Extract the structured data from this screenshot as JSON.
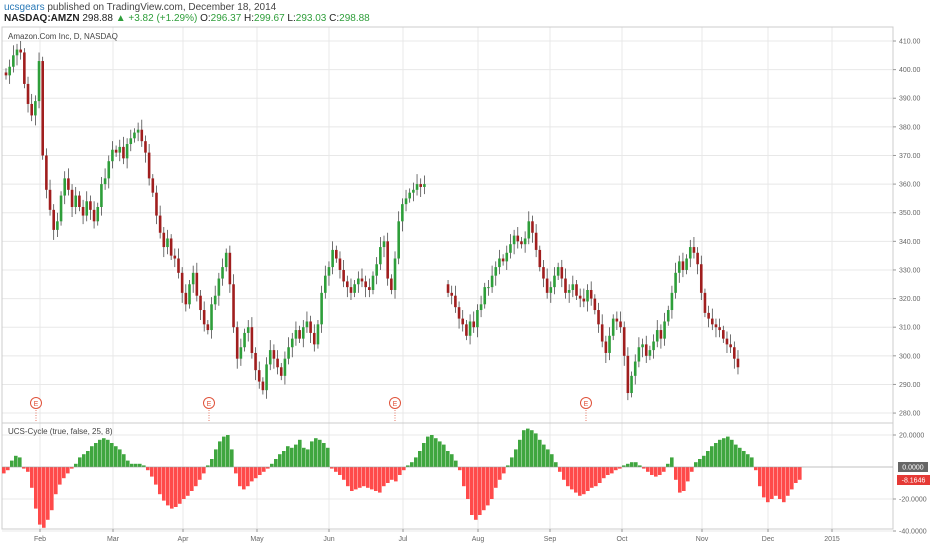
{
  "header": {
    "user": "ucsgears",
    "published": "published on TradingView.com, December 18, 2014",
    "symbol": "NASDAQ:AMZN",
    "last": "298.88",
    "change": "▲ +3.82 (+1.29%)",
    "open_label": "O:",
    "open": "296.37",
    "high_label": "H:",
    "high": "299.67",
    "low_label": "L:",
    "low": "293.03",
    "close_label": "C:",
    "close": "298.88"
  },
  "colors": {
    "up": "#2e9e3a",
    "down": "#a01e1e",
    "hist_up": "#3fa63f",
    "hist_down": "#ff4a4a",
    "grid": "#e8e8e8",
    "earnings": "#e0533b"
  },
  "chart_data": [
    {
      "type": "candlestick",
      "title": "Amazon.Com Inc, D, NASDAQ",
      "x_labels": [
        "Feb",
        "Mar",
        "Apr",
        "May",
        "Jun",
        "Jul",
        "Aug",
        "Sep",
        "Oct",
        "Nov",
        "Dec",
        "2015"
      ],
      "y_ticks": [
        280,
        290,
        300,
        310,
        320,
        330,
        340,
        350,
        360,
        370,
        380,
        390,
        400,
        410
      ],
      "y_tick_labels": [
        "280.00",
        "290.00",
        "300.00",
        "310.00",
        "320.00",
        "330.00",
        "340.00",
        "350.00",
        "360.00",
        "370.00",
        "380.00",
        "390.00",
        "400.00",
        "410.00"
      ],
      "ylim": [
        276,
        413
      ],
      "earnings_marker": "E",
      "earnings_x": [
        30,
        203,
        389,
        580
      ],
      "closes": [
        398,
        401,
        405,
        407,
        406,
        395,
        388,
        384,
        389,
        403,
        370,
        358,
        351,
        344,
        347,
        356,
        362,
        358,
        352,
        356,
        352,
        349,
        354,
        351,
        347,
        352,
        360,
        362,
        368,
        372,
        371,
        373,
        369,
        374,
        376,
        378,
        379,
        375,
        371,
        362,
        357,
        349,
        343,
        338,
        341,
        335,
        334,
        329,
        322,
        318,
        325,
        329,
        321,
        316,
        311,
        309,
        318,
        321,
        327,
        331,
        336,
        325,
        310,
        299,
        303,
        308,
        310,
        301,
        295,
        291,
        288,
        297,
        302,
        299,
        296,
        293,
        299,
        303,
        306,
        309,
        306,
        310,
        312,
        308,
        304,
        311,
        322,
        328,
        331,
        337,
        334,
        330,
        326,
        324,
        322,
        325,
        327,
        326,
        324,
        323,
        328,
        332,
        338,
        340,
        327,
        323,
        334,
        347,
        353,
        355,
        357,
        358,
        360,
        359,
        360,
        322,
        321,
        317,
        313,
        311,
        307,
        312,
        310,
        316,
        318,
        324,
        324,
        328,
        331,
        334,
        333,
        336,
        339,
        342,
        340,
        339,
        341,
        347,
        343,
        337,
        331,
        327,
        322,
        324,
        328,
        331,
        327,
        322,
        323,
        325,
        321,
        320,
        319,
        323,
        320,
        316,
        311,
        305,
        301,
        307,
        313,
        312,
        310,
        300,
        287,
        293,
        298,
        303,
        304,
        300,
        302,
        305,
        309,
        306,
        312,
        316,
        322,
        329,
        333,
        330,
        334,
        338,
        336,
        332,
        322,
        315,
        313,
        311,
        310,
        309,
        306,
        304,
        303,
        299,
        296
      ],
      "x_start": 6,
      "x_step": 3.67
    },
    {
      "type": "bar",
      "title": "UCS-Cycle (true, false, 25, 8)",
      "y_ticks": [
        20,
        0,
        -20,
        -40
      ],
      "y_tick_labels": [
        "20.0000",
        "0.0000",
        "-20.0000",
        "-40.0000"
      ],
      "ylim": [
        -40,
        25
      ],
      "last_value_label": "0.0000",
      "current_value_label": "-8.1646",
      "values": [
        -4,
        -2,
        4,
        7,
        6,
        -1,
        -3,
        -13,
        -26,
        -36,
        -38,
        -33,
        -27,
        -17,
        -11,
        -7,
        -4,
        -1,
        2,
        6,
        8,
        10,
        13,
        15,
        17,
        18,
        17,
        15,
        13,
        11,
        8,
        4,
        2,
        2,
        2,
        1,
        -2,
        -6,
        -11,
        -17,
        -21,
        -24,
        -26,
        -25,
        -23,
        -20,
        -18,
        -15,
        -12,
        -8,
        -4,
        1,
        5,
        11,
        16,
        19,
        20,
        11,
        -4,
        -12,
        -14,
        -12,
        -9,
        -7,
        -5,
        -3,
        -1,
        2,
        5,
        8,
        10,
        13,
        12,
        14,
        17,
        12,
        11,
        16,
        18,
        17,
        15,
        12,
        -1,
        -3,
        -5,
        -8,
        -12,
        -15,
        -14,
        -13,
        -12,
        -13,
        -14,
        -15,
        -16,
        -12,
        -10,
        -8,
        -9,
        -5,
        -2,
        1,
        3,
        6,
        10,
        15,
        19,
        20,
        18,
        16,
        14,
        10,
        8,
        4,
        -2,
        -12,
        -20,
        -30,
        -33,
        -30,
        -27,
        -24,
        -20,
        -13,
        -8,
        -4,
        1,
        6,
        11,
        17,
        23,
        24,
        23,
        21,
        17,
        14,
        11,
        8,
        3,
        -3,
        -8,
        -12,
        -14,
        -16,
        -18,
        -17,
        -15,
        -13,
        -12,
        -10,
        -7,
        -5,
        -4,
        -2,
        -1,
        1,
        2,
        3,
        3,
        1,
        -1,
        -3,
        -5,
        -6,
        -5,
        -3,
        2,
        6,
        -8,
        -16,
        -15,
        -9,
        -3,
        3,
        5,
        7,
        10,
        13,
        15,
        17,
        18,
        19,
        17,
        14,
        12,
        10,
        8,
        6,
        -2,
        -12,
        -19,
        -22,
        -20,
        -18,
        -20,
        -22,
        -18,
        -14,
        -10,
        -8
      ]
    }
  ]
}
